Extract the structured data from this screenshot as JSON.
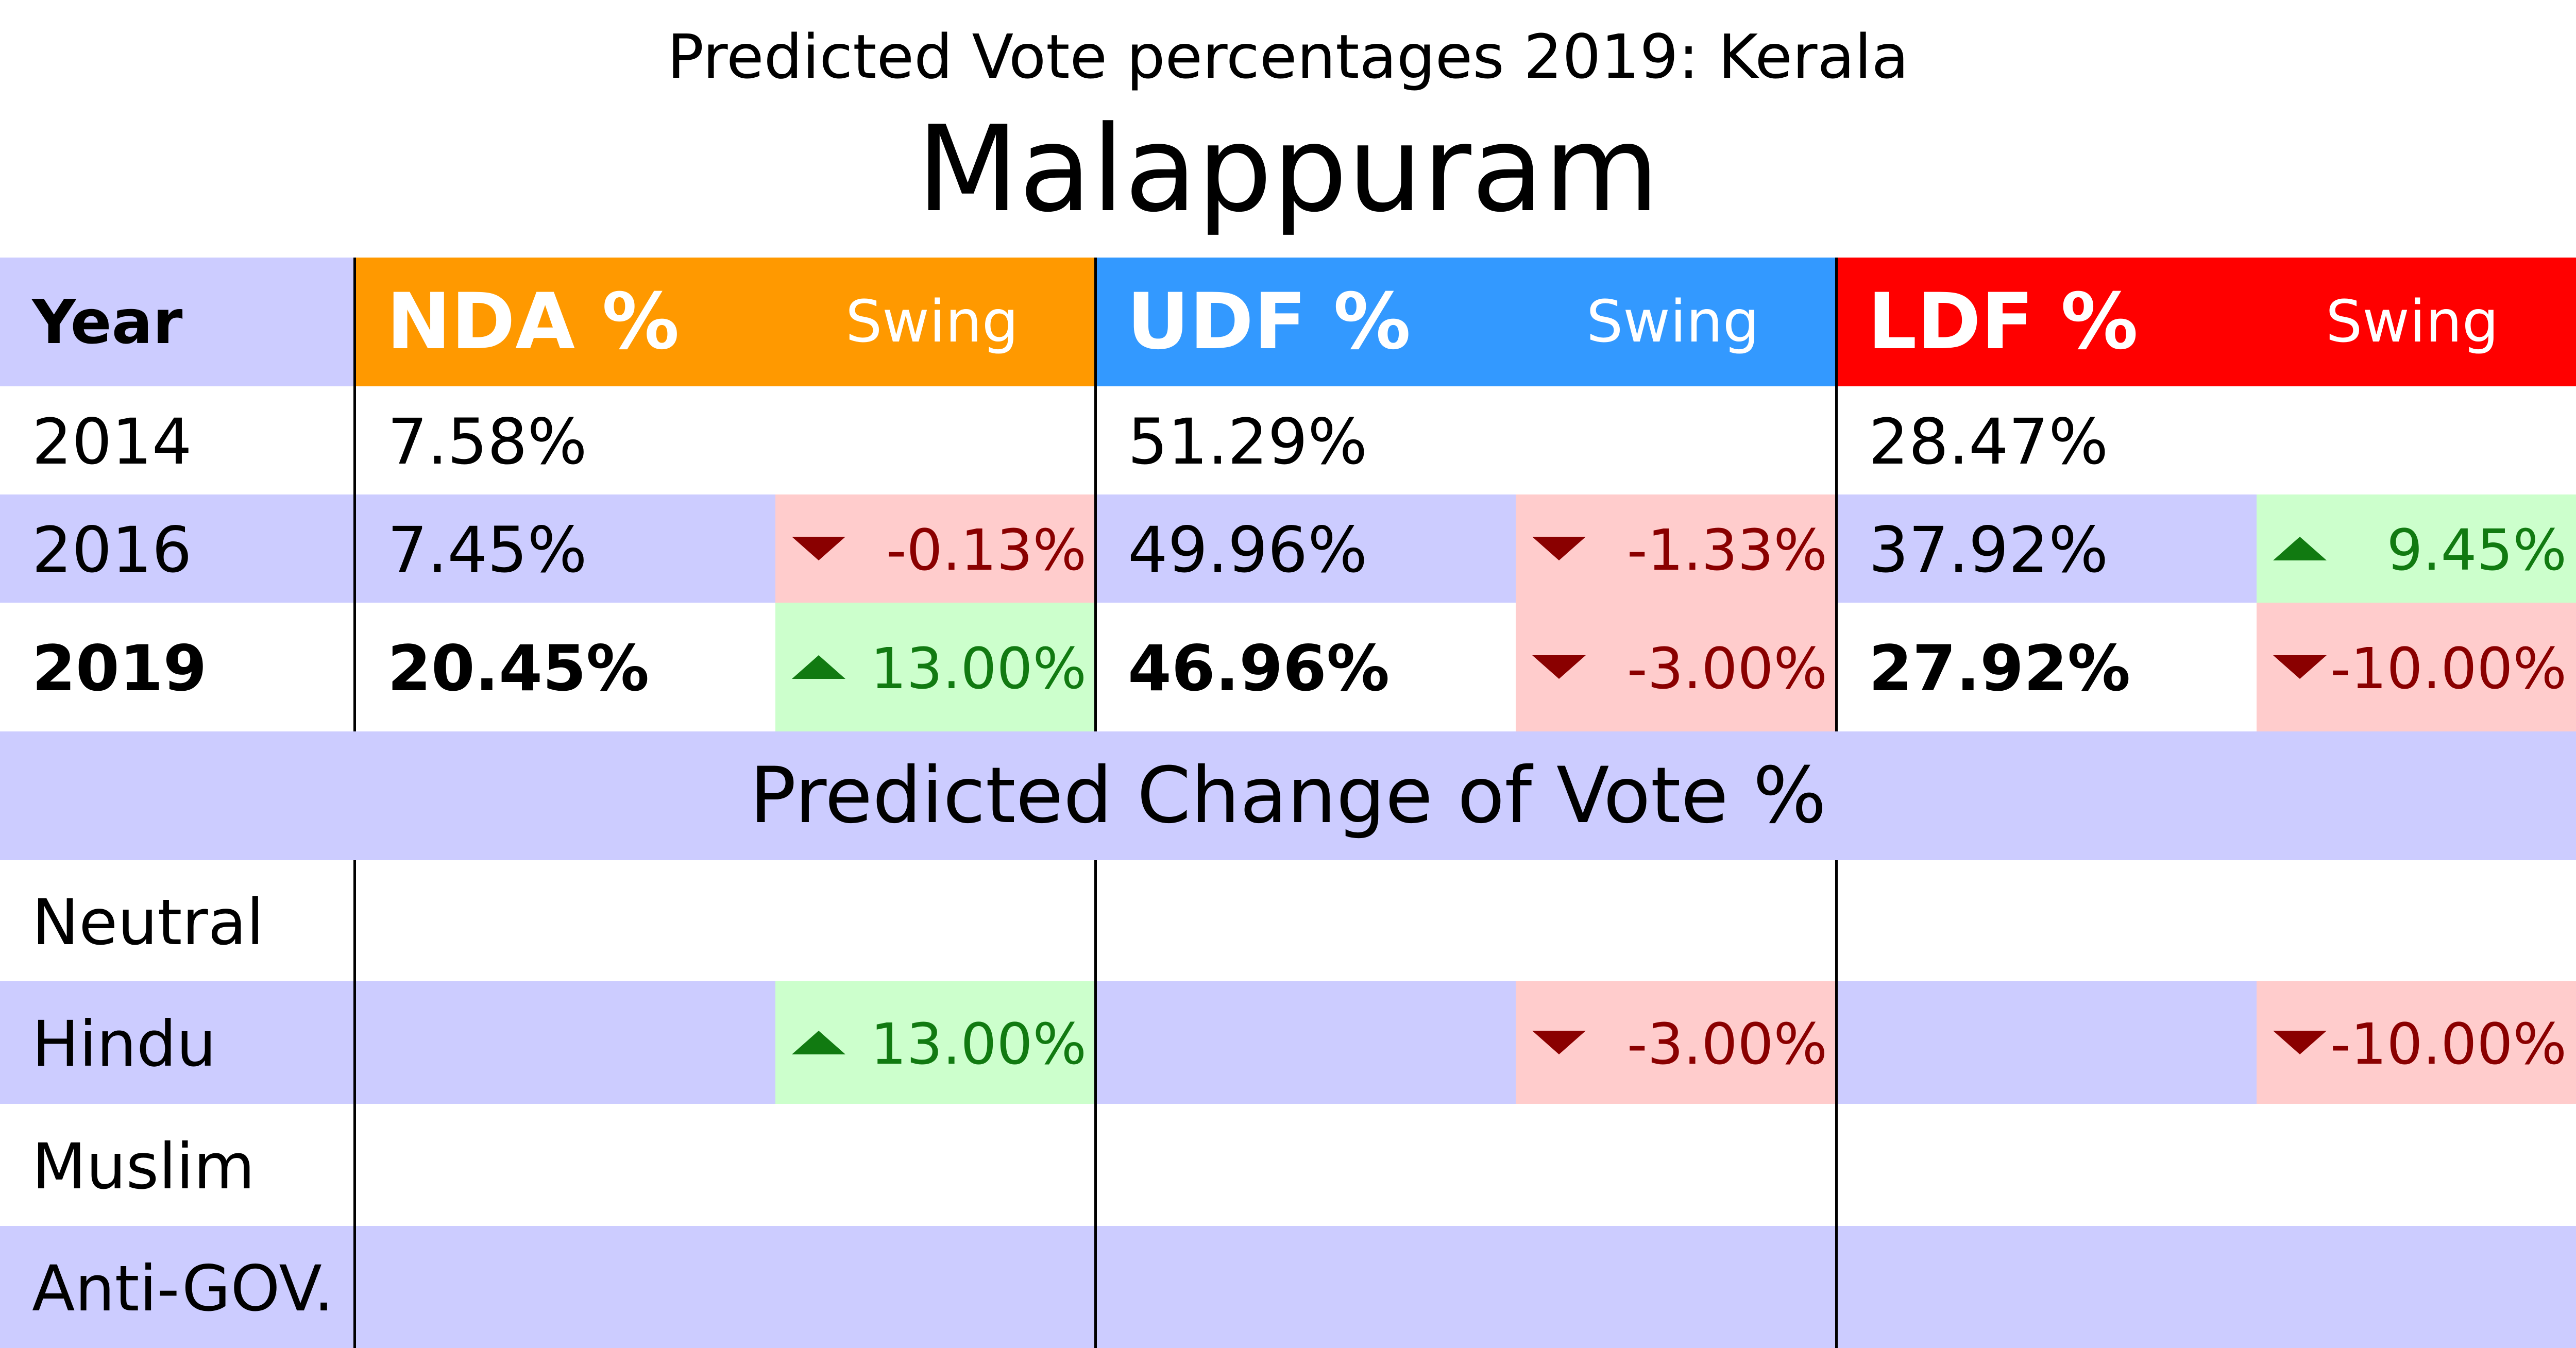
{
  "subtitle": "Predicted Vote percentages 2019: Kerala",
  "title": "Malappuram",
  "year_header": "Year",
  "parties": [
    {
      "name": "NDA %",
      "swing_label": "Swing",
      "color": "#ff9900"
    },
    {
      "name": "UDF %",
      "swing_label": "Swing",
      "color": "#3399ff"
    },
    {
      "name": "LDF %",
      "swing_label": "Swing",
      "color": "#ff0000"
    }
  ],
  "rows": [
    {
      "year": "2014",
      "values": [
        "7.58%",
        "51.29%",
        "28.47%"
      ],
      "swings": [
        "",
        "",
        ""
      ]
    },
    {
      "year": "2016",
      "values": [
        "7.45%",
        "49.96%",
        "37.92%"
      ],
      "swings": [
        "-0.13%",
        "-1.33%",
        "9.45%"
      ]
    },
    {
      "year": "2019",
      "values": [
        "20.45%",
        "46.96%",
        "27.92%"
      ],
      "swings": [
        "13.00%",
        "-3.00%",
        "-10.00%"
      ]
    }
  ],
  "change_header": "Predicted Change of Vote %",
  "change_rows": [
    {
      "label": "Neutral",
      "swings": [
        "",
        "",
        ""
      ]
    },
    {
      "label": "Hindu",
      "swings": [
        "13.00%",
        "-3.00%",
        "-10.00%"
      ]
    },
    {
      "label": "Muslim",
      "swings": [
        "",
        "",
        ""
      ]
    },
    {
      "label": "Anti-GOV.",
      "swings": [
        "",
        "",
        ""
      ]
    }
  ],
  "colors": {
    "band": "#ccccff",
    "swing_up_bg": "#ccffcc",
    "swing_down_bg": "#ffcccc",
    "swing_up_text": "#117a11",
    "swing_down_text": "#8a0000"
  },
  "chart_data": {
    "type": "table",
    "title": "Malappuram",
    "subtitle": "Predicted Vote percentages 2019: Kerala",
    "columns": [
      "Year",
      "NDA %",
      "Swing",
      "UDF %",
      "Swing",
      "LDF %",
      "Swing"
    ],
    "categories": [
      "2014",
      "2016",
      "2019"
    ],
    "series": [
      {
        "name": "NDA %",
        "values": [
          7.58,
          7.45,
          20.45
        ],
        "swing": [
          null,
          -0.13,
          13.0
        ]
      },
      {
        "name": "UDF %",
        "values": [
          51.29,
          49.96,
          46.96
        ],
        "swing": [
          null,
          -1.33,
          -3.0
        ]
      },
      {
        "name": "LDF %",
        "values": [
          28.47,
          37.92,
          27.92
        ],
        "swing": [
          null,
          9.45,
          -10.0
        ]
      }
    ],
    "predicted_change": {
      "categories": [
        "Neutral",
        "Hindu",
        "Muslim",
        "Anti-GOV."
      ],
      "NDA %": [
        null,
        13.0,
        null,
        null
      ],
      "UDF %": [
        null,
        -3.0,
        null,
        null
      ],
      "LDF %": [
        null,
        -10.0,
        null,
        null
      ]
    }
  }
}
